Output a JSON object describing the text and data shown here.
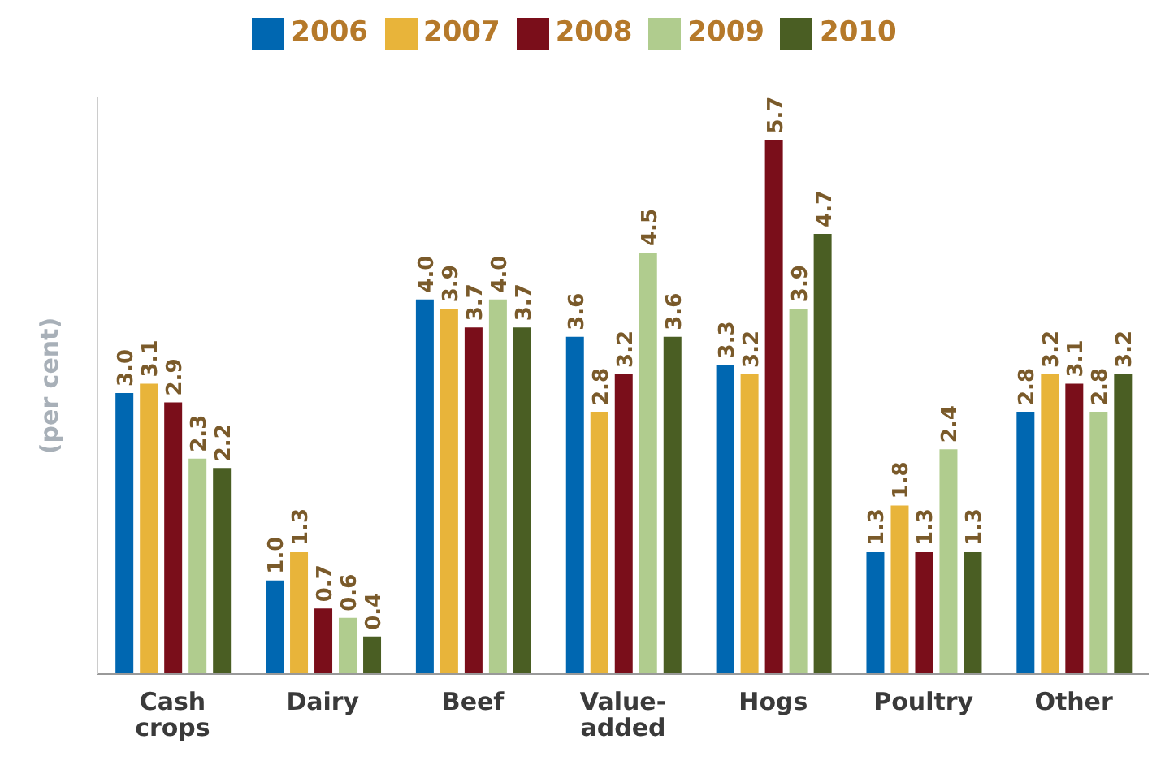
{
  "chart_data": {
    "type": "bar",
    "ylabel": "(per cent)",
    "categories": [
      "Cash crops",
      "Dairy",
      "Beef",
      "Value-added",
      "Hogs",
      "Poultry",
      "Other"
    ],
    "series": [
      {
        "name": "2006",
        "color": "#0067b1",
        "values": [
          3.0,
          1.0,
          4.0,
          3.6,
          3.3,
          1.3,
          2.8
        ],
        "value_labels": [
          "3.0",
          "1.0",
          "4.0",
          "3.6",
          "3.3",
          "1.3",
          "2.8"
        ]
      },
      {
        "name": "2007",
        "color": "#e8b43a",
        "values": [
          3.1,
          1.3,
          3.9,
          2.8,
          3.2,
          1.8,
          3.2
        ],
        "value_labels": [
          "3.1",
          "1.3",
          "3.9",
          "2.8",
          "3.2",
          "1.8",
          "3.2"
        ]
      },
      {
        "name": "2008",
        "color": "#7a0e1a",
        "values": [
          2.9,
          0.7,
          3.7,
          3.2,
          5.7,
          1.3,
          3.1
        ],
        "value_labels": [
          "2.9",
          "0.7",
          "3.7",
          "3.2",
          "5.7",
          "1.3",
          "3.1"
        ]
      },
      {
        "name": "2009",
        "color": "#b0cc8e",
        "values": [
          2.3,
          0.6,
          4.0,
          4.5,
          3.9,
          2.4,
          2.8
        ],
        "value_labels": [
          "2.3",
          "0.6",
          "4.0",
          "4.5",
          "3.9",
          "2.4",
          "2.8"
        ]
      },
      {
        "name": "2010",
        "color": "#4a5e23",
        "values": [
          2.2,
          0.4,
          3.7,
          3.6,
          4.7,
          1.3,
          3.2
        ],
        "value_labels": [
          "2.2",
          "0.4",
          "3.7",
          "3.6",
          "4.7",
          "1.3",
          "3.2"
        ]
      }
    ],
    "legend": "top"
  }
}
